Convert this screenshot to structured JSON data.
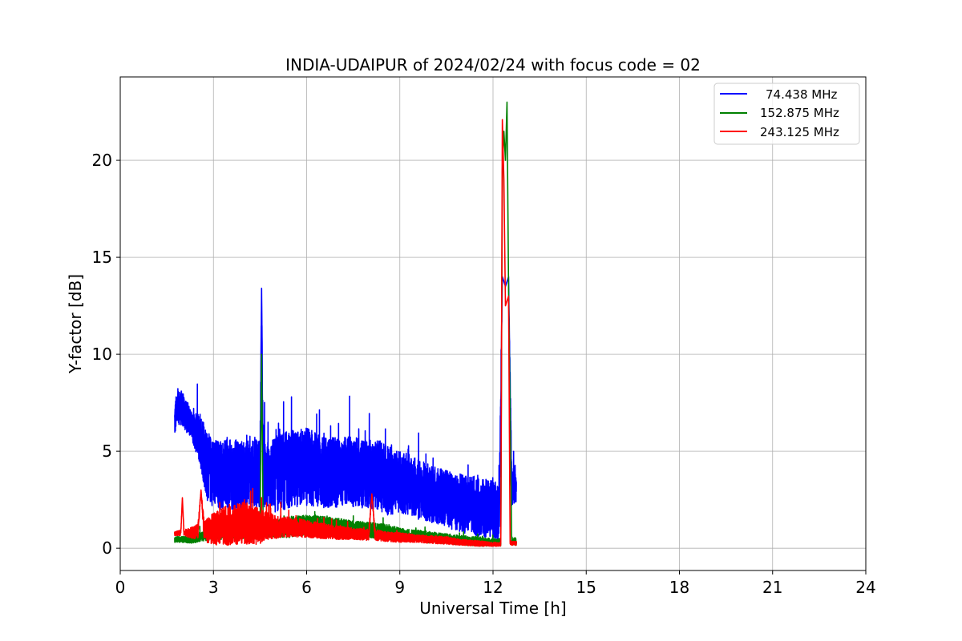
{
  "chart_data": {
    "type": "line",
    "title": "INDIA-UDAIPUR of 2024/02/24 with focus code = 02",
    "xlabel": "Universal Time [h]",
    "ylabel": "Y-factor [dB]",
    "xlim": [
      0,
      24
    ],
    "ylim": [
      -1.15,
      24.3
    ],
    "xticks": [
      0,
      3,
      6,
      9,
      12,
      15,
      18,
      21,
      24
    ],
    "yticks": [
      0,
      5,
      10,
      15,
      20
    ],
    "grid": true,
    "legend_position": "top-right",
    "series": [
      {
        "name": "74.438 MHz",
        "color": "#0000ff",
        "x": [
          1.75,
          1.8,
          1.9,
          2.0,
          2.1,
          2.2,
          2.3,
          2.4,
          2.5,
          2.6,
          2.7,
          2.8,
          3.0,
          3.2,
          3.5,
          3.8,
          4.0,
          4.3,
          4.5,
          4.55,
          4.6,
          4.8,
          5.0,
          5.3,
          5.6,
          6.0,
          6.3,
          6.6,
          7.0,
          7.3,
          7.6,
          8.0,
          8.3,
          8.6,
          9.0,
          9.3,
          9.6,
          10.0,
          10.3,
          10.6,
          11.0,
          11.3,
          11.6,
          12.0,
          12.2,
          12.3,
          12.4,
          12.5,
          12.6,
          12.75
        ],
        "y": [
          6.5,
          7.0,
          7.3,
          7.2,
          6.8,
          6.7,
          6.3,
          6.0,
          5.8,
          5.5,
          5.0,
          4.2,
          3.9,
          3.8,
          3.8,
          3.8,
          3.7,
          3.8,
          3.9,
          13.4,
          3.8,
          3.7,
          3.8,
          4.0,
          4.1,
          4.2,
          4.0,
          3.9,
          3.9,
          4.0,
          3.9,
          3.8,
          3.8,
          3.5,
          3.4,
          3.3,
          3.0,
          2.8,
          2.7,
          2.5,
          2.3,
          2.2,
          2.1,
          2.0,
          1.8,
          14.0,
          13.5,
          14.0,
          3.2,
          3.4
        ],
        "amp": [
          0.9,
          0.9,
          0.9,
          0.9,
          0.8,
          0.8,
          0.7,
          0.9,
          1.2,
          1.5,
          1.8,
          1.8,
          1.8,
          1.8,
          1.8,
          1.8,
          1.8,
          1.8,
          1.8,
          0,
          1.8,
          1.8,
          2.0,
          2.0,
          2.0,
          2.0,
          2.0,
          1.8,
          1.8,
          1.8,
          1.8,
          1.8,
          1.8,
          1.8,
          1.6,
          1.6,
          1.6,
          1.5,
          1.5,
          1.5,
          1.5,
          1.5,
          1.5,
          1.5,
          1.5,
          0,
          0,
          0,
          1.0,
          1.0
        ]
      },
      {
        "name": "152.875 MHz",
        "color": "#008000",
        "x": [
          1.75,
          2.0,
          2.3,
          2.6,
          3.0,
          3.3,
          3.6,
          4.0,
          4.3,
          4.5,
          4.55,
          4.6,
          5.0,
          5.5,
          6.0,
          6.5,
          7.0,
          7.5,
          8.0,
          8.5,
          9.0,
          9.5,
          10.0,
          10.5,
          11.0,
          11.5,
          12.0,
          12.25,
          12.3,
          12.35,
          12.4,
          12.45,
          12.5,
          12.6,
          12.75
        ],
        "y": [
          0.45,
          0.45,
          0.45,
          0.6,
          0.7,
          0.75,
          0.8,
          0.8,
          0.85,
          0.9,
          10.0,
          0.9,
          1.0,
          1.1,
          1.2,
          1.15,
          1.1,
          1.0,
          0.95,
          0.85,
          0.7,
          0.65,
          0.55,
          0.5,
          0.4,
          0.35,
          0.3,
          0.3,
          19.5,
          21.5,
          20.0,
          23.0,
          13.5,
          0.4,
          0.35
        ],
        "amp": [
          0.15,
          0.15,
          0.2,
          0.25,
          0.25,
          0.3,
          0.3,
          0.3,
          0.3,
          0.3,
          0,
          0.3,
          0.45,
          0.55,
          0.5,
          0.5,
          0.45,
          0.4,
          0.4,
          0.4,
          0.35,
          0.3,
          0.3,
          0.25,
          0.25,
          0.25,
          0.2,
          0.2,
          0,
          0,
          0,
          0,
          0,
          0.2,
          0.2
        ]
      },
      {
        "name": "243.125 MHz",
        "color": "#ff0000",
        "x": [
          1.75,
          1.95,
          2.0,
          2.05,
          2.3,
          2.5,
          2.6,
          2.7,
          3.0,
          3.3,
          3.6,
          4.0,
          4.3,
          4.5,
          4.6,
          5.0,
          5.5,
          6.0,
          6.5,
          7.0,
          7.5,
          8.0,
          8.1,
          8.2,
          8.5,
          9.0,
          9.5,
          10.0,
          10.5,
          11.0,
          11.5,
          12.0,
          12.25,
          12.3,
          12.35,
          12.4,
          12.5,
          12.55,
          12.6,
          12.75
        ],
        "y": [
          0.75,
          0.8,
          2.6,
          0.8,
          0.8,
          0.85,
          3.0,
          0.9,
          1.0,
          1.1,
          1.2,
          1.3,
          1.2,
          1.1,
          1.2,
          1.1,
          1.1,
          1.0,
          0.9,
          0.8,
          0.75,
          0.7,
          2.8,
          0.7,
          0.6,
          0.55,
          0.5,
          0.45,
          0.4,
          0.3,
          0.25,
          0.2,
          0.2,
          22.1,
          19.0,
          12.5,
          13.0,
          0.3,
          0.25,
          0.25
        ],
        "amp": [
          0.1,
          0.15,
          0,
          0.15,
          0.3,
          0.4,
          0,
          0.6,
          0.8,
          1.0,
          1.0,
          1.1,
          1.0,
          0.9,
          0.8,
          0.6,
          0.5,
          0.45,
          0.4,
          0.35,
          0.3,
          0.3,
          0,
          0.3,
          0.25,
          0.25,
          0.2,
          0.2,
          0.2,
          0.15,
          0.15,
          0.1,
          0.1,
          0,
          0,
          0,
          0,
          0.1,
          0.1,
          0.1
        ]
      }
    ]
  }
}
